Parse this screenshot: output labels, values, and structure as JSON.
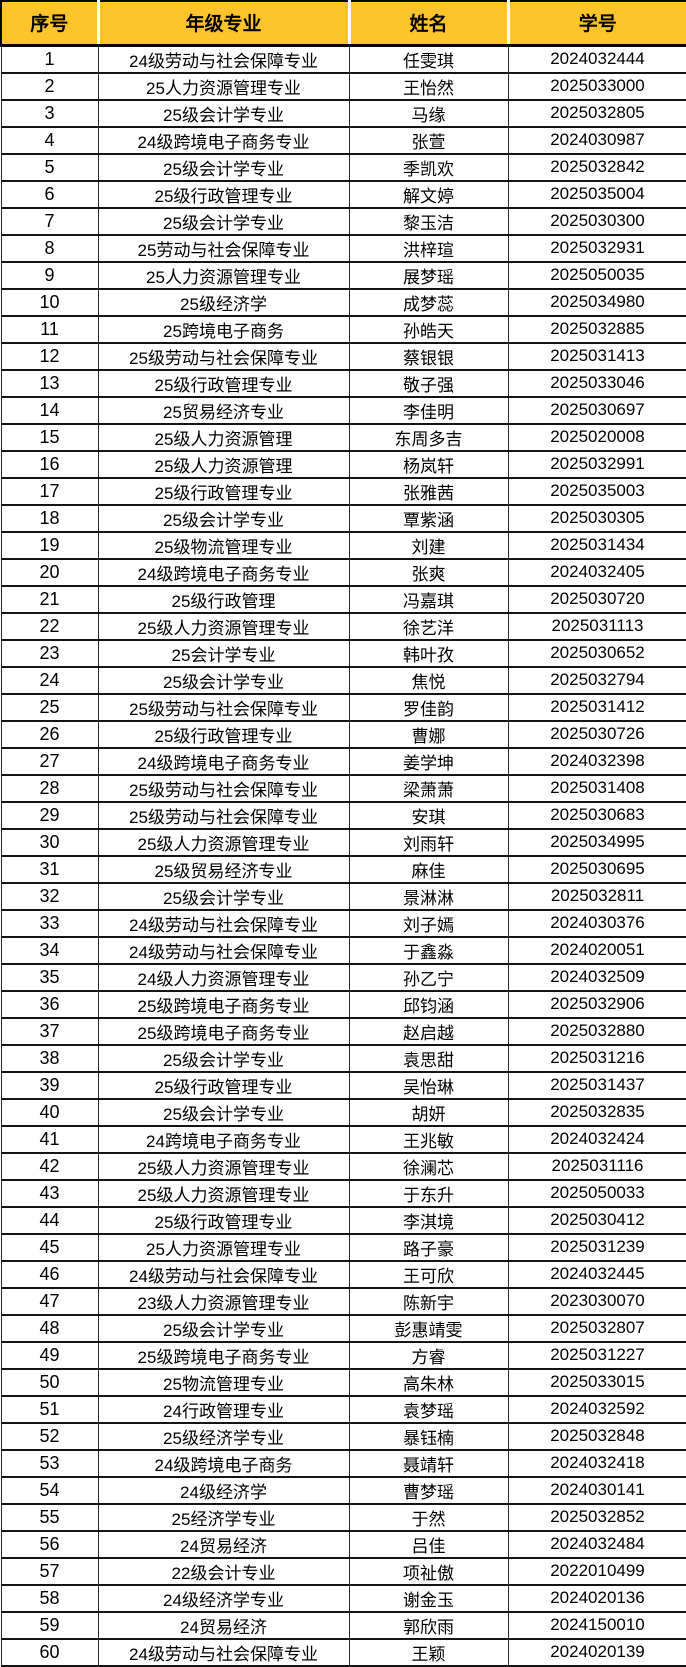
{
  "colors": {
    "header_bg": "#FFC32B",
    "header_text": "#000000",
    "row_bg": "#FFFFFF",
    "grid_border": "#000000"
  },
  "table": {
    "columns": [
      {
        "key": "index",
        "label": "序号"
      },
      {
        "key": "major",
        "label": "年级专业"
      },
      {
        "key": "name",
        "label": "姓名"
      },
      {
        "key": "student_id",
        "label": "学号"
      }
    ],
    "rows": [
      {
        "index": "1",
        "major": "24级劳动与社会保障专业",
        "name": "任雯琪",
        "student_id": "2024032444"
      },
      {
        "index": "2",
        "major": "25人力资源管理专业",
        "name": "王怡然",
        "student_id": "2025033000"
      },
      {
        "index": "3",
        "major": "25级会计学专业",
        "name": "马缘",
        "student_id": "2025032805"
      },
      {
        "index": "4",
        "major": "24级跨境电子商务专业",
        "name": "张萱",
        "student_id": "2024030987"
      },
      {
        "index": "5",
        "major": "25级会计学专业",
        "name": "季凯欢",
        "student_id": "2025032842"
      },
      {
        "index": "6",
        "major": "25级行政管理专业",
        "name": "解文婷",
        "student_id": "2025035004"
      },
      {
        "index": "7",
        "major": "25级会计学专业",
        "name": "黎玉洁",
        "student_id": "2025030300"
      },
      {
        "index": "8",
        "major": "25劳动与社会保障专业",
        "name": "洪梓瑄",
        "student_id": "2025032931"
      },
      {
        "index": "9",
        "major": "25人力资源管理专业",
        "name": "展梦瑶",
        "student_id": "2025050035"
      },
      {
        "index": "10",
        "major": "25级经济学",
        "name": "成梦蕊",
        "student_id": "2025034980"
      },
      {
        "index": "11",
        "major": "25跨境电子商务",
        "name": "孙皓天",
        "student_id": "2025032885"
      },
      {
        "index": "12",
        "major": "25级劳动与社会保障专业",
        "name": "蔡银银",
        "student_id": "2025031413"
      },
      {
        "index": "13",
        "major": "25级行政管理专业",
        "name": "敬子强",
        "student_id": "2025033046"
      },
      {
        "index": "14",
        "major": "25贸易经济专业",
        "name": "李佳明",
        "student_id": "2025030697"
      },
      {
        "index": "15",
        "major": "25级人力资源管理",
        "name": "东周多吉",
        "student_id": "2025020008"
      },
      {
        "index": "16",
        "major": "25级人力资源管理",
        "name": "杨岚轩",
        "student_id": "2025032991"
      },
      {
        "index": "17",
        "major": "25级行政管理专业",
        "name": "张雅茜",
        "student_id": "2025035003"
      },
      {
        "index": "18",
        "major": "25级会计学专业",
        "name": "覃紫涵",
        "student_id": "2025030305"
      },
      {
        "index": "19",
        "major": "25级物流管理专业",
        "name": "刘建",
        "student_id": "2025031434"
      },
      {
        "index": "20",
        "major": "24级跨境电子商务专业",
        "name": "张爽",
        "student_id": "2024032405"
      },
      {
        "index": "21",
        "major": "25级行政管理",
        "name": "冯嘉琪",
        "student_id": "2025030720"
      },
      {
        "index": "22",
        "major": "25级人力资源管理专业",
        "name": "徐艺洋",
        "student_id": "2025031113"
      },
      {
        "index": "23",
        "major": "25会计学专业",
        "name": "韩叶孜",
        "student_id": "2025030652"
      },
      {
        "index": "24",
        "major": "25级会计学专业",
        "name": "焦悦",
        "student_id": "2025032794"
      },
      {
        "index": "25",
        "major": "25级劳动与社会保障专业",
        "name": "罗佳韵",
        "student_id": "2025031412"
      },
      {
        "index": "26",
        "major": "25级行政管理专业",
        "name": "曹娜",
        "student_id": "2025030726"
      },
      {
        "index": "27",
        "major": "24级跨境电子商务专业",
        "name": "姜学坤",
        "student_id": "2024032398"
      },
      {
        "index": "28",
        "major": "25级劳动与社会保障专业",
        "name": "梁萧萧",
        "student_id": "2025031408"
      },
      {
        "index": "29",
        "major": "25级劳动与社会保障专业",
        "name": "安琪",
        "student_id": "2025030683"
      },
      {
        "index": "30",
        "major": "25级人力资源管理专业",
        "name": "刘雨轩",
        "student_id": "2025034995"
      },
      {
        "index": "31",
        "major": "25级贸易经济专业",
        "name": "麻佳",
        "student_id": "2025030695"
      },
      {
        "index": "32",
        "major": "25级会计学专业",
        "name": "景淋淋",
        "student_id": "2025032811"
      },
      {
        "index": "33",
        "major": "24级劳动与社会保障专业",
        "name": "刘子嫣",
        "student_id": "2024030376"
      },
      {
        "index": "34",
        "major": "24级劳动与社会保障专业",
        "name": "于鑫淼",
        "student_id": "2024020051"
      },
      {
        "index": "35",
        "major": "24级人力资源管理专业",
        "name": "孙乙宁",
        "student_id": "2024032509"
      },
      {
        "index": "36",
        "major": "25级跨境电子商务专业",
        "name": "邱钧涵",
        "student_id": "2025032906"
      },
      {
        "index": "37",
        "major": "25级跨境电子商务专业",
        "name": "赵启越",
        "student_id": "2025032880"
      },
      {
        "index": "38",
        "major": "25级会计学专业",
        "name": "袁思甜",
        "student_id": "2025031216"
      },
      {
        "index": "39",
        "major": "25级行政管理专业",
        "name": "吴怡琳",
        "student_id": "2025031437"
      },
      {
        "index": "40",
        "major": "25级会计学专业",
        "name": "胡妍",
        "student_id": "2025032835"
      },
      {
        "index": "41",
        "major": "24跨境电子商务专业",
        "name": "王兆敏",
        "student_id": "2024032424"
      },
      {
        "index": "42",
        "major": "25级人力资源管理专业",
        "name": "徐澜芯",
        "student_id": "2025031116"
      },
      {
        "index": "43",
        "major": "25级人力资源管理专业",
        "name": "于东升",
        "student_id": "2025050033"
      },
      {
        "index": "44",
        "major": "25级行政管理专业",
        "name": "李淇境",
        "student_id": "2025030412"
      },
      {
        "index": "45",
        "major": "25人力资源管理专业",
        "name": "路子豪",
        "student_id": "2025031239"
      },
      {
        "index": "46",
        "major": "24级劳动与社会保障专业",
        "name": "王可欣",
        "student_id": "2024032445"
      },
      {
        "index": "47",
        "major": "23级人力资源管理专业",
        "name": "陈新宇",
        "student_id": "2023030070"
      },
      {
        "index": "48",
        "major": "25级会计学专业",
        "name": "彭惠靖雯",
        "student_id": "2025032807"
      },
      {
        "index": "49",
        "major": "25级跨境电子商务专业",
        "name": "方睿",
        "student_id": "2025031227"
      },
      {
        "index": "50",
        "major": "25物流管理专业",
        "name": "高朱林",
        "student_id": "2025033015"
      },
      {
        "index": "51",
        "major": "24行政管理专业",
        "name": "袁梦瑶",
        "student_id": "2024032592"
      },
      {
        "index": "52",
        "major": "25级经济学专业",
        "name": "暴钰楠",
        "student_id": "2025032848"
      },
      {
        "index": "53",
        "major": "24级跨境电子商务",
        "name": "聂靖轩",
        "student_id": "2024032418"
      },
      {
        "index": "54",
        "major": "24级经济学",
        "name": "曹梦瑶",
        "student_id": "2024030141"
      },
      {
        "index": "55",
        "major": "25经济学专业",
        "name": "于然",
        "student_id": "2025032852"
      },
      {
        "index": "56",
        "major": "24贸易经济",
        "name": "吕佳",
        "student_id": "2024032484"
      },
      {
        "index": "57",
        "major": "22级会计专业",
        "name": "项祉傲",
        "student_id": "2022010499"
      },
      {
        "index": "58",
        "major": "24级经济学专业",
        "name": "谢金玉",
        "student_id": "2024020136"
      },
      {
        "index": "59",
        "major": "24贸易经济",
        "name": "郭欣雨",
        "student_id": "2024150010"
      },
      {
        "index": "60",
        "major": "24级劳动与社会保障专业",
        "name": "王颖",
        "student_id": "2024020139"
      }
    ]
  }
}
